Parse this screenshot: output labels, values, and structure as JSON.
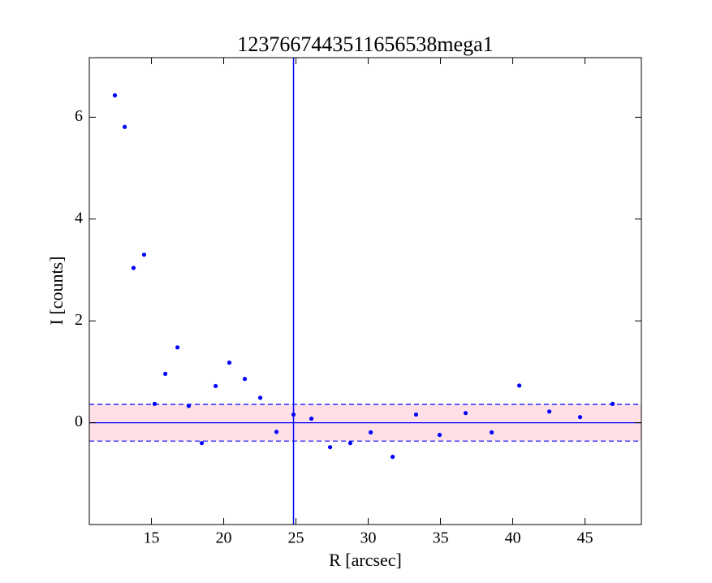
{
  "chart_data": {
    "type": "scatter",
    "title": "1237667443511656538mega1",
    "xlabel": "R [arcsec]",
    "ylabel": "I [counts]",
    "x": [
      12.47,
      13.15,
      13.76,
      14.49,
      15.22,
      15.96,
      16.8,
      17.58,
      18.48,
      19.44,
      20.39,
      21.46,
      22.53,
      23.65,
      24.83,
      26.07,
      27.36,
      28.76,
      30.17,
      31.69,
      33.31,
      34.94,
      36.74,
      38.54,
      40.45,
      42.53,
      44.66,
      46.91
    ],
    "values": [
      6.43,
      5.81,
      3.04,
      3.3,
      0.37,
      0.96,
      1.48,
      0.33,
      -0.4,
      0.72,
      1.18,
      0.86,
      0.49,
      -0.18,
      0.16,
      0.08,
      -0.48,
      -0.4,
      -0.19,
      -0.67,
      0.16,
      -0.24,
      0.19,
      -0.19,
      0.73,
      0.22,
      0.11,
      0.37
    ],
    "color": "#0000ff",
    "xlim": [
      10.7,
      48.9
    ],
    "ylim": [
      -2,
      7.17
    ],
    "xticks": [
      15,
      20,
      25,
      30,
      35,
      40,
      45
    ],
    "yticks": [
      0,
      2,
      4,
      6
    ],
    "vline": 24.83,
    "hline": 0,
    "band": [
      -0.36,
      0.36
    ],
    "band_color": "#ffe0e6",
    "grid": false
  }
}
